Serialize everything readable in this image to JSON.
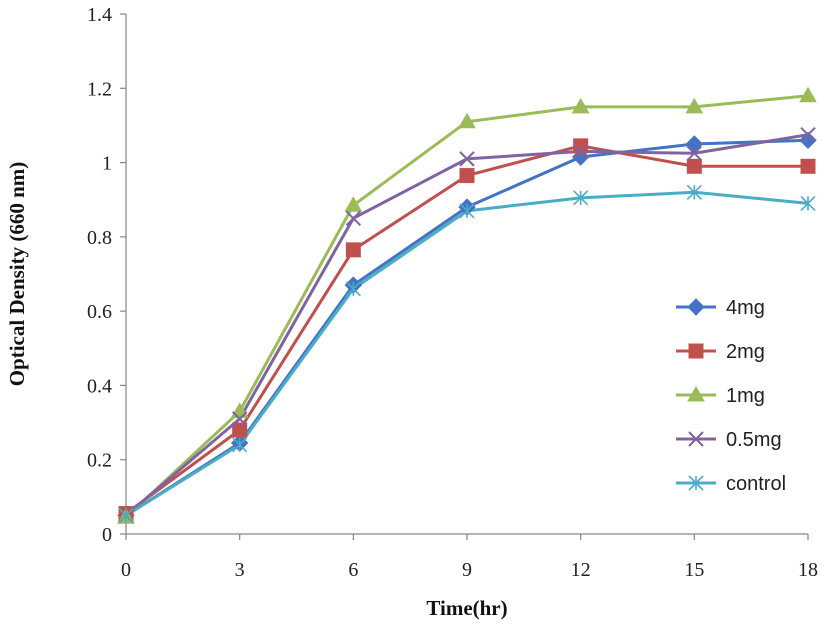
{
  "chart_data": {
    "type": "line",
    "title": "",
    "xlabel": "Time(hr)",
    "ylabel": "Optical Density (660 nm)",
    "xlim": [
      0,
      18
    ],
    "ylim": [
      0,
      1.4
    ],
    "x": [
      0,
      3,
      6,
      9,
      12,
      15,
      18
    ],
    "x_tick_labels": [
      "0",
      "3",
      "6",
      "9",
      "12",
      "15",
      "18"
    ],
    "y_ticks": [
      0,
      0.2,
      0.4,
      0.6,
      0.8,
      1.0,
      1.2,
      1.4
    ],
    "y_tick_labels": [
      "0",
      "0.2",
      "0.4",
      "0.6",
      "0.8",
      "1",
      "1.2",
      "1.4"
    ],
    "grid": false,
    "legend_position": "right",
    "series": [
      {
        "name": "4mg",
        "color": "#4472C4",
        "marker": "diamond",
        "values": [
          0.05,
          0.245,
          0.67,
          0.88,
          1.015,
          1.05,
          1.06
        ]
      },
      {
        "name": "2mg",
        "color": "#C0504D",
        "marker": "square",
        "values": [
          0.055,
          0.28,
          0.765,
          0.965,
          1.045,
          0.99,
          0.99
        ]
      },
      {
        "name": "1mg",
        "color": "#9BBB59",
        "marker": "triangle",
        "values": [
          0.045,
          0.33,
          0.885,
          1.11,
          1.15,
          1.15,
          1.18
        ]
      },
      {
        "name": "0.5mg",
        "color": "#8064A2",
        "marker": "x",
        "values": [
          0.05,
          0.31,
          0.85,
          1.01,
          1.03,
          1.025,
          1.075
        ]
      },
      {
        "name": "control",
        "color": "#4BACC6",
        "marker": "star",
        "values": [
          0.05,
          0.24,
          0.66,
          0.87,
          0.905,
          0.92,
          0.89
        ]
      }
    ]
  }
}
